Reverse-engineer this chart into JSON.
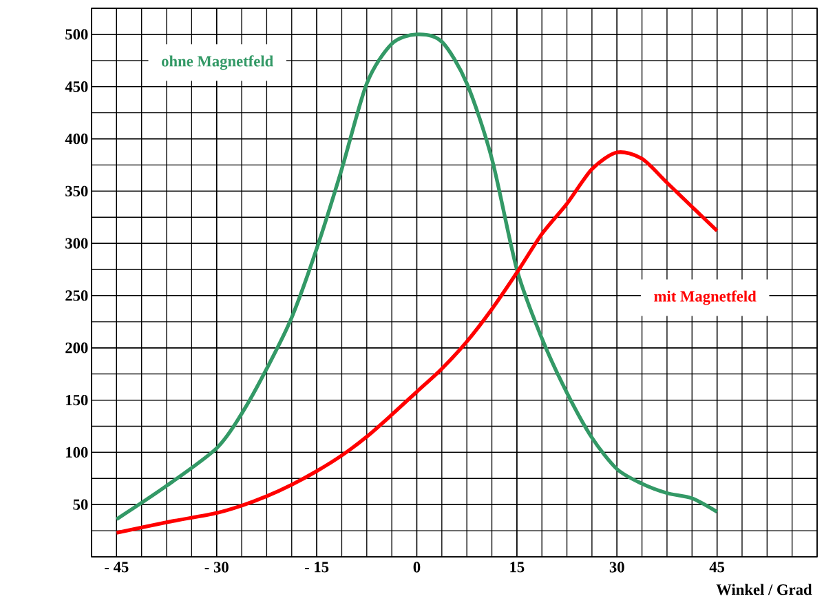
{
  "chart_data": {
    "type": "line",
    "xlabel": "Winkel / Grad",
    "x": [
      -45,
      -37.5,
      -30,
      -26.25,
      -22.5,
      -18.75,
      -15,
      -11.25,
      -7.5,
      -3.75,
      0,
      3.75,
      7.5,
      11.25,
      15,
      18.75,
      22.5,
      26.25,
      30,
      33.75,
      37.5,
      41.25,
      45
    ],
    "series": [
      {
        "name": "ohne Magnetfeld",
        "color": "#339966",
        "values": [
          36,
          68,
          104,
          137,
          180,
          229,
          295,
          371,
          453,
          491,
          500,
          493,
          453,
          381,
          275,
          209,
          157,
          114,
          84,
          70,
          61,
          56,
          43
        ]
      },
      {
        "name": "mit Magnetfeld",
        "color": "#ff0000",
        "values": [
          23,
          33,
          42,
          49,
          58,
          69,
          82,
          97,
          115,
          136,
          158,
          180,
          206,
          237,
          272,
          309,
          338,
          371,
          387,
          381,
          358,
          335,
          312
        ]
      }
    ],
    "xlim": [
      -48.75,
      60
    ],
    "ylim": [
      0,
      525
    ],
    "xticks": [
      {
        "value": -45,
        "label": "- 45"
      },
      {
        "value": -30,
        "label": "- 30"
      },
      {
        "value": -15,
        "label": "- 15"
      },
      0,
      15,
      30,
      45
    ],
    "yticks": [
      50,
      100,
      150,
      200,
      250,
      300,
      350,
      400,
      450,
      500
    ],
    "grid": true,
    "marker": "none",
    "line_style": "solid"
  }
}
